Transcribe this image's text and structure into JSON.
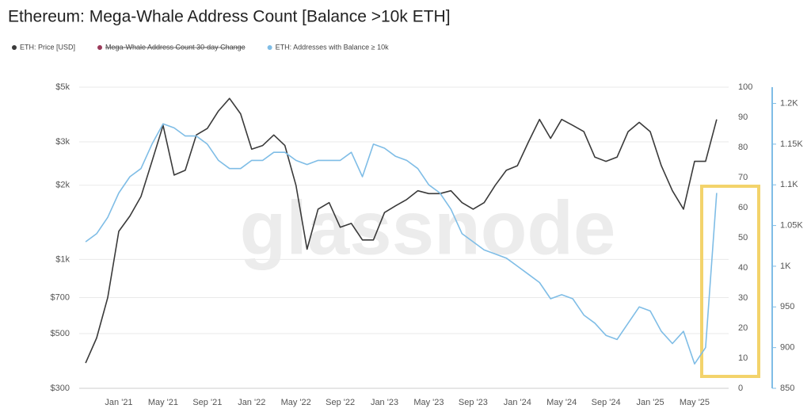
{
  "chart_data": {
    "type": "line",
    "title": "Ethereum: Mega-Whale Address Count [Balance >10k ETH]",
    "watermark": "glassnode",
    "categories": [
      null,
      null,
      null,
      "Jan '21",
      null,
      null,
      null,
      "May '21",
      null,
      null,
      null,
      "Sep '21",
      null,
      null,
      null,
      "Jan '22",
      null,
      null,
      null,
      "May '22",
      null,
      null,
      null,
      "Sep '22",
      null,
      null,
      null,
      "Jan '23",
      null,
      null,
      null,
      "May '23",
      null,
      null,
      null,
      "Sep '23",
      null,
      null,
      null,
      "Jan '24",
      null,
      null,
      null,
      "May '24",
      null,
      null,
      null,
      "Sep '24",
      null,
      null,
      null,
      "Jan '25",
      null,
      null,
      null,
      "May '25",
      null,
      null
    ],
    "log_scale": true,
    "grid": true,
    "ylim": [
      300,
      5000
    ],
    "yticks": [
      {
        "value": 300,
        "label": "$300"
      },
      {
        "value": 500,
        "label": "$500"
      },
      {
        "value": 700,
        "label": "$700"
      },
      {
        "value": 1000,
        "label": "$1k"
      },
      {
        "value": 2000,
        "label": "$2k"
      },
      {
        "value": 3000,
        "label": "$3k"
      },
      {
        "value": 5000,
        "label": "$5k"
      }
    ],
    "y2lim": [
      0,
      100
    ],
    "y2ticks": [
      0,
      10,
      20,
      30,
      40,
      50,
      60,
      70,
      80,
      90,
      100
    ],
    "y3lim": [
      850,
      1220
    ],
    "y3ticks": [
      850,
      900,
      950,
      {
        "value": 1000,
        "label": "1K"
      },
      {
        "value": 1050,
        "label": "1.05K"
      },
      {
        "value": 1100,
        "label": "1.1K"
      },
      {
        "value": 1150,
        "label": "1.15K"
      },
      {
        "value": 1200,
        "label": "1.2K"
      }
    ],
    "series": [
      {
        "name": "ETH: Price [USD]",
        "color": "#3a3a3a",
        "values": [
          380,
          480,
          700,
          1300,
          1500,
          1800,
          2500,
          3500,
          2200,
          2300,
          3200,
          3400,
          4000,
          4500,
          3900,
          2800,
          2900,
          3200,
          2900,
          2000,
          1100,
          1600,
          1700,
          1350,
          1400,
          1200,
          1200,
          1550,
          1650,
          1750,
          1900,
          1850,
          1850,
          1900,
          1700,
          1600,
          1700,
          2000,
          2300,
          2400,
          3000,
          3700,
          3100,
          3700,
          3500,
          3300,
          2600,
          2500,
          2600,
          3300,
          3600,
          3300,
          2400,
          1900,
          1600,
          2500,
          2500,
          3700
        ]
      },
      {
        "name": "Mega-Whale Address Count 30-day Change",
        "color": "#9b3a5a",
        "axis": "y2",
        "hidden": true,
        "values": [
          null,
          null,
          null,
          null,
          null,
          null,
          null,
          null,
          null,
          null,
          null,
          null,
          null,
          null,
          null,
          null,
          null,
          null,
          null,
          null,
          null,
          null,
          null,
          null,
          null,
          null,
          null,
          null,
          null,
          null,
          null,
          null,
          null,
          null,
          null,
          null,
          null,
          null,
          null,
          null,
          null,
          null,
          null,
          null,
          null,
          null,
          null,
          null,
          null,
          null,
          null,
          null,
          null,
          null,
          null,
          null,
          null,
          null
        ]
      },
      {
        "name": "ETH: Addresses with Balance ≥ 10k",
        "color": "#7fbde6",
        "axis": "y3",
        "values": [
          1030,
          1040,
          1060,
          1090,
          1110,
          1120,
          1150,
          1175,
          1170,
          1160,
          1160,
          1150,
          1130,
          1120,
          1120,
          1130,
          1130,
          1140,
          1140,
          1130,
          1125,
          1130,
          1130,
          1130,
          1140,
          1110,
          1150,
          1145,
          1135,
          1130,
          1120,
          1100,
          1090,
          1070,
          1040,
          1030,
          1020,
          1015,
          1010,
          1000,
          990,
          980,
          960,
          965,
          960,
          940,
          930,
          915,
          910,
          930,
          950,
          945,
          920,
          905,
          920,
          880,
          900,
          1090
        ]
      }
    ]
  }
}
